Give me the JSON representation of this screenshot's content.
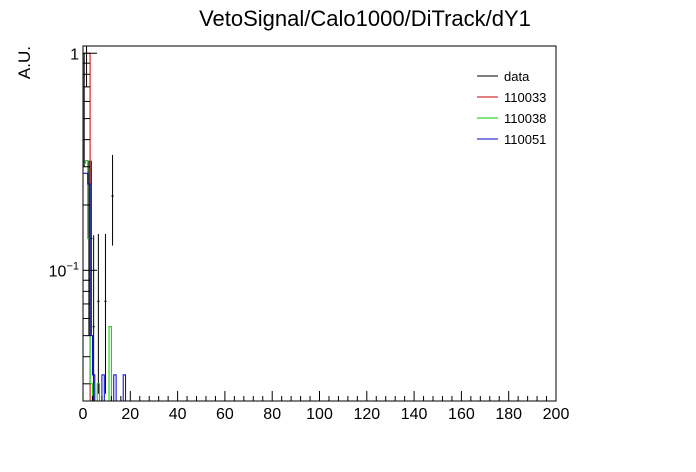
{
  "chart_data": {
    "type": "step",
    "title": "VetoSignal/Calo1000/DiTrack/dY1",
    "xlabel": "",
    "ylabel": "A.U.",
    "xlim": [
      0,
      200
    ],
    "ylim": [
      0.025,
      1.08
    ],
    "yscale": "log",
    "bin_width": 1,
    "x_major_ticks": [
      0,
      20,
      40,
      60,
      80,
      100,
      120,
      140,
      160,
      180,
      200
    ],
    "x_tick_labels": [
      "0",
      "20",
      "40",
      "60",
      "80",
      "100",
      "120",
      "140",
      "160",
      "180",
      "200"
    ],
    "y_tick_labels": [
      {
        "value": 1,
        "base": "1",
        "exp": ""
      },
      {
        "value": 0.1,
        "base": "10",
        "exp": "−1"
      }
    ],
    "legend_position": "top-right",
    "legend": [
      {
        "label": "data",
        "color": "#000000"
      },
      {
        "label": "110033",
        "color": "#c80000"
      },
      {
        "label": "110038",
        "color": "#00cc00"
      },
      {
        "label": "110051",
        "color": "#0000cc"
      }
    ],
    "series": [
      {
        "name": "data",
        "color": "#000000",
        "style": "errorbar",
        "points": [
          {
            "x": 0.5,
            "y": 0.5,
            "err_lo": 0.2,
            "err_hi": 0.5
          },
          {
            "x": 1.5,
            "y": 1.0,
            "err_lo": 0.3,
            "err_hi": 0.3
          },
          {
            "x": 2.5,
            "y": 0.14,
            "err_lo": 0.09,
            "err_hi": 0.18
          },
          {
            "x": 3.5,
            "y": 0.14,
            "err_lo": 0.09,
            "err_hi": 0.18
          },
          {
            "x": 4.5,
            "y": 0.055,
            "err_lo": 0.03,
            "err_hi": 0.09
          },
          {
            "x": 6.5,
            "y": 0.072,
            "err_lo": 0.045,
            "err_hi": 0.075
          },
          {
            "x": 9.5,
            "y": 0.072,
            "err_lo": 0.045,
            "err_hi": 0.075
          },
          {
            "x": 12.5,
            "y": 0.22,
            "err_lo": 0.09,
            "err_hi": 0.12
          }
        ]
      },
      {
        "name": "110033",
        "color": "#c80000",
        "style": "step",
        "bins": [
          [
            0,
            1.0
          ],
          [
            1,
            1.0
          ],
          [
            2,
            1.0
          ],
          [
            3,
            0.0
          ]
        ]
      },
      {
        "name": "110038",
        "color": "#00cc00",
        "style": "step",
        "bins": [
          [
            0,
            0.31
          ],
          [
            1,
            0.32
          ],
          [
            2,
            0.14
          ],
          [
            3,
            0.03
          ],
          [
            4,
            0.0
          ],
          [
            5,
            0.0
          ],
          [
            6,
            0.03
          ],
          [
            7,
            0.0
          ],
          [
            8,
            0.0
          ],
          [
            9,
            0.0
          ],
          [
            10,
            0.0
          ],
          [
            11,
            0.055
          ],
          [
            12,
            0.0
          ]
        ]
      },
      {
        "name": "110051",
        "color": "#0000cc",
        "style": "step",
        "bins": [
          [
            0,
            0.28
          ],
          [
            1,
            0.28
          ],
          [
            2,
            0.25
          ],
          [
            3,
            0.05
          ],
          [
            4,
            0.033
          ],
          [
            5,
            0.0
          ],
          [
            6,
            0.0
          ],
          [
            7,
            0.0
          ],
          [
            8,
            0.033
          ],
          [
            9,
            0.0
          ],
          [
            10,
            0.0
          ],
          [
            11,
            0.0
          ],
          [
            12,
            0.0
          ],
          [
            13,
            0.033
          ],
          [
            14,
            0.0
          ],
          [
            15,
            0.0
          ],
          [
            16,
            0.0
          ],
          [
            17,
            0.033
          ],
          [
            18,
            0.0
          ]
        ]
      }
    ]
  }
}
